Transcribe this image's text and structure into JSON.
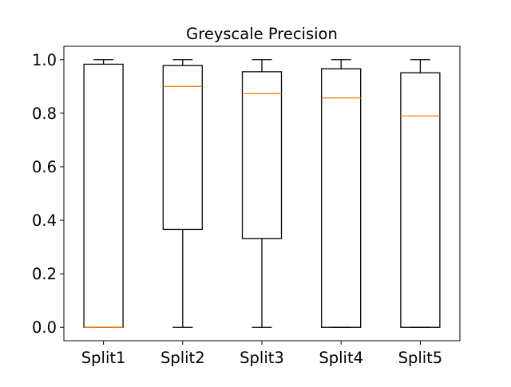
{
  "chart_data": {
    "type": "box",
    "title": "Greyscale Precision",
    "xlabel": "",
    "ylabel": "",
    "categories": [
      "Split1",
      "Split2",
      "Split3",
      "Split4",
      "Split5"
    ],
    "ylim": [
      -0.05,
      1.05
    ],
    "yticks": [
      0.0,
      0.2,
      0.4,
      0.6,
      0.8,
      1.0
    ],
    "ytick_labels": [
      "0.0",
      "0.2",
      "0.4",
      "0.6",
      "0.8",
      "1.0"
    ],
    "grid": false,
    "boxes": [
      {
        "category": "Split1",
        "whisker_low": 0.0,
        "q1": 0.0,
        "median": 0.0,
        "q3": 0.983,
        "whisker_high": 1.0
      },
      {
        "category": "Split2",
        "whisker_low": 0.0,
        "q1": 0.366,
        "median": 0.9,
        "q3": 0.978,
        "whisker_high": 1.0
      },
      {
        "category": "Split3",
        "whisker_low": 0.0,
        "q1": 0.332,
        "median": 0.873,
        "q3": 0.955,
        "whisker_high": 1.0
      },
      {
        "category": "Split4",
        "whisker_low": 0.0,
        "q1": 0.0,
        "median": 0.857,
        "q3": 0.966,
        "whisker_high": 1.0
      },
      {
        "category": "Split5",
        "whisker_low": 0.0,
        "q1": 0.0,
        "median": 0.79,
        "q3": 0.951,
        "whisker_high": 1.0
      }
    ],
    "colors": {
      "box": "#000000",
      "median": "#ff7f0e",
      "background": "#ffffff"
    }
  }
}
